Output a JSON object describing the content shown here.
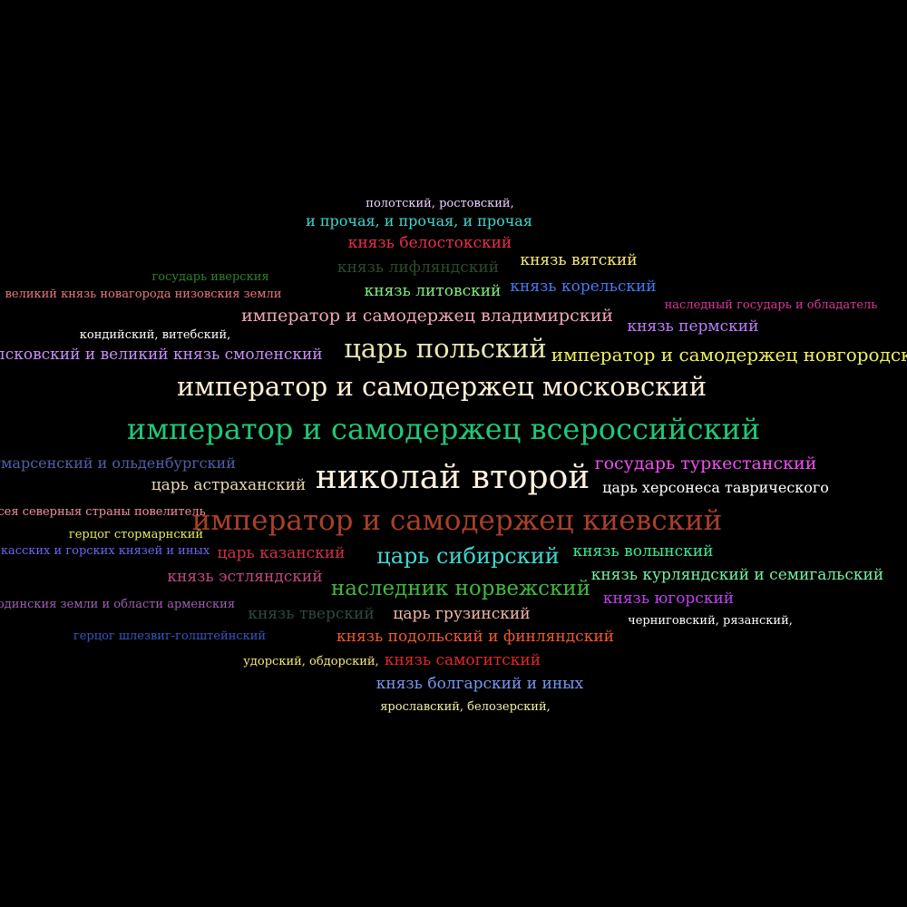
{
  "words": [
    {
      "id": "w01",
      "text": "полотский, ростовский,",
      "color": "#f0d0ff"
    },
    {
      "id": "w02",
      "text": "и прочая, и прочая, и прочая",
      "color": "#40d8d0"
    },
    {
      "id": "w03",
      "text": "князь белостокский",
      "color": "#e83048"
    },
    {
      "id": "w04",
      "text": "князь лифляндский",
      "color": "#2c4a2c"
    },
    {
      "id": "w05",
      "text": "князь вятский",
      "color": "#f8e878"
    },
    {
      "id": "w06",
      "text": "государь иверския",
      "color": "#308030"
    },
    {
      "id": "w07",
      "text": "великий князь новагорода низовския земли",
      "color": "#e87880"
    },
    {
      "id": "w08",
      "text": "князь литовский",
      "color": "#80f080"
    },
    {
      "id": "w09",
      "text": "князь корельский",
      "color": "#4878f0"
    },
    {
      "id": "w10",
      "text": "наследный государь и обладатель",
      "color": "#d83898"
    },
    {
      "id": "w11",
      "text": "император и самодержец владимирский",
      "color": "#f0a8b8"
    },
    {
      "id": "w12",
      "text": "князь пермский",
      "color": "#b880f8"
    },
    {
      "id": "w13",
      "text": "кондийский, витебский,",
      "color": "#ffffff"
    },
    {
      "id": "w14",
      "text": "псковский и великий князь смоленский",
      "color": "#c890f8"
    },
    {
      "id": "w15",
      "text": "царь польский",
      "color": "#e8e8b0"
    },
    {
      "id": "w16",
      "text": "император и самодержец новгородский",
      "color": "#f0f060"
    },
    {
      "id": "w17",
      "text": "император и самодержец московский",
      "color": "#fff0d8"
    },
    {
      "id": "w18",
      "text": "император и самодержец всероссийский",
      "color": "#20c878"
    },
    {
      "id": "w19",
      "text": "тмарсенский и ольденбургский",
      "color": "#5060a8"
    },
    {
      "id": "w20",
      "text": "государь туркестанский",
      "color": "#f050f0"
    },
    {
      "id": "w21",
      "text": "царь астраханский",
      "color": "#e8d8b0"
    },
    {
      "id": "w22",
      "text": "николай второй",
      "color": "#fff0e0"
    },
    {
      "id": "w23",
      "text": "царь херсонеса таврического",
      "color": "#ffffff"
    },
    {
      "id": "w24",
      "text": "сея северныя страны повелитель",
      "color": "#f090a0"
    },
    {
      "id": "w25",
      "text": "император и самодержец киевский",
      "color": "#a84028"
    },
    {
      "id": "w26",
      "text": "герцог стормарнский",
      "color": "#e8e860"
    },
    {
      "id": "w27",
      "text": "касских и горских князей и иных",
      "color": "#6868f0"
    },
    {
      "id": "w28",
      "text": "царь казанский",
      "color": "#d03048"
    },
    {
      "id": "w29",
      "text": "царь сибирский",
      "color": "#40d8d0"
    },
    {
      "id": "w30",
      "text": "князь волынский",
      "color": "#40e890"
    },
    {
      "id": "w31",
      "text": "князь эстляндский",
      "color": "#c04880"
    },
    {
      "id": "w32",
      "text": "наследник норвежский",
      "color": "#40b840"
    },
    {
      "id": "w33",
      "text": "князь курляндский и семигальский",
      "color": "#78f0a8"
    },
    {
      "id": "w34",
      "text": "одинския земли и области арменския",
      "color": "#a060b0"
    },
    {
      "id": "w35",
      "text": "князь тверский",
      "color": "#2c4a40"
    },
    {
      "id": "w36",
      "text": "царь грузинский",
      "color": "#f0b8a8"
    },
    {
      "id": "w37",
      "text": "князь югорский",
      "color": "#c040f0"
    },
    {
      "id": "w38",
      "text": "черниговский, рязанский,",
      "color": "#ffffff"
    },
    {
      "id": "w39",
      "text": "герцог шлезвиг-голштейнский",
      "color": "#3858c0"
    },
    {
      "id": "w40",
      "text": "князь подольский и финляндский",
      "color": "#f05830"
    },
    {
      "id": "w41",
      "text": "удорский, обдорский,",
      "color": "#f8e878"
    },
    {
      "id": "w42",
      "text": "князь самогитский",
      "color": "#e02828"
    },
    {
      "id": "w43",
      "text": "князь болгарский и иных",
      "color": "#7898f0"
    },
    {
      "id": "w44",
      "text": "ярославский, белозерский,",
      "color": "#f8f0a8"
    }
  ]
}
